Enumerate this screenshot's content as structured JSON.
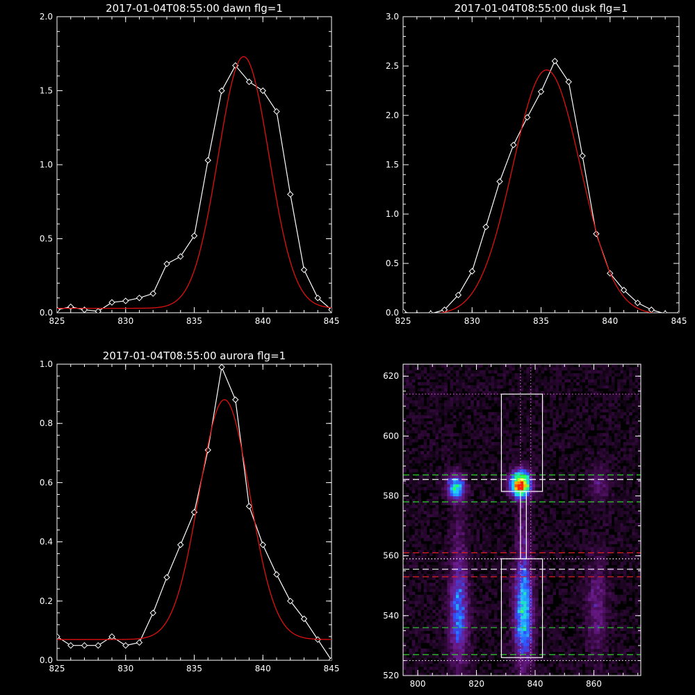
{
  "chart_data": [
    {
      "type": "line",
      "title": "2017-01-04T08:55:00 dawn flg=1",
      "xlim": [
        825,
        845
      ],
      "ylim": [
        0.0,
        2.0
      ],
      "xticks": [
        "825",
        "830",
        "835",
        "840",
        "845"
      ],
      "yticks": [
        "0.0",
        "0.5",
        "1.0",
        "1.5",
        "2.0"
      ],
      "series": [
        {
          "color": "#ffffff",
          "marker": "diamond",
          "x": [
            825,
            826,
            827,
            828,
            829,
            830,
            831,
            832,
            833,
            834,
            835,
            836,
            837,
            838,
            839,
            840,
            841,
            842,
            843,
            844,
            845
          ],
          "y": [
            0.02,
            0.04,
            0.02,
            0.01,
            0.07,
            0.08,
            0.1,
            0.13,
            0.33,
            0.38,
            0.52,
            1.03,
            1.5,
            1.67,
            1.56,
            1.5,
            1.36,
            0.8,
            0.29,
            0.1,
            0.02
          ]
        },
        {
          "color": "#e01010",
          "marker": "none",
          "fit": "gaussian",
          "params": {
            "baseline": 0.03,
            "amplitude": 1.7,
            "center": 838.6,
            "sigma": 1.85
          },
          "x": [
            825,
            845
          ]
        }
      ]
    },
    {
      "type": "line",
      "title": "2017-01-04T08:55:00 dusk flg=1",
      "xlim": [
        825,
        845
      ],
      "ylim": [
        0.0,
        3.0
      ],
      "xticks": [
        "825",
        "830",
        "835",
        "840",
        "845"
      ],
      "yticks": [
        "0.0",
        "0.5",
        "1.0",
        "1.5",
        "2.0",
        "2.5",
        "3.0"
      ],
      "series": [
        {
          "color": "#ffffff",
          "marker": "diamond",
          "x": [
            825,
            826,
            827,
            828,
            829,
            830,
            831,
            832,
            833,
            834,
            835,
            836,
            837,
            838,
            839,
            840,
            841,
            842,
            843,
            844,
            845
          ],
          "y": [
            0.01,
            -0.02,
            -0.01,
            0.03,
            0.18,
            0.42,
            0.87,
            1.33,
            1.7,
            1.98,
            2.24,
            2.55,
            2.34,
            1.59,
            0.8,
            0.4,
            0.23,
            0.1,
            0.03,
            -0.01,
            -0.01
          ]
        },
        {
          "color": "#e01010",
          "marker": "none",
          "fit": "gaussian",
          "params": {
            "baseline": -0.02,
            "amplitude": 2.48,
            "center": 835.4,
            "sigma": 2.45
          },
          "x": [
            825,
            845
          ]
        }
      ]
    },
    {
      "type": "line",
      "title": "2017-01-04T08:55:00 aurora flg=1",
      "xlim": [
        825,
        845
      ],
      "ylim": [
        0.0,
        1.0
      ],
      "xticks": [
        "825",
        "830",
        "835",
        "840",
        "845"
      ],
      "yticks": [
        "0.0",
        "0.2",
        "0.4",
        "0.6",
        "0.8",
        "1.0"
      ],
      "series": [
        {
          "color": "#ffffff",
          "marker": "diamond",
          "x": [
            825,
            826,
            827,
            828,
            829,
            830,
            831,
            832,
            833,
            834,
            835,
            836,
            837,
            838,
            839,
            840,
            841,
            842,
            843,
            844,
            845
          ],
          "y": [
            0.08,
            0.05,
            0.05,
            0.05,
            0.08,
            0.05,
            0.06,
            0.16,
            0.28,
            0.39,
            0.5,
            0.71,
            0.99,
            0.88,
            0.52,
            0.39,
            0.29,
            0.2,
            0.14,
            0.07,
            0.0
          ]
        },
        {
          "color": "#e01010",
          "marker": "none",
          "fit": "gaussian",
          "params": {
            "baseline": 0.07,
            "amplitude": 0.81,
            "center": 837.2,
            "sigma": 1.85
          },
          "x": [
            825,
            845
          ]
        }
      ]
    },
    {
      "type": "heatmap",
      "title": "",
      "xlim": [
        795,
        876
      ],
      "ylim": [
        520,
        624
      ],
      "xticks": [
        "800",
        "820",
        "840",
        "860"
      ],
      "yticks": [
        "520",
        "540",
        "560",
        "580",
        "600",
        "620"
      ],
      "colormap": [
        "#000000",
        "#3a0a45",
        "#6a1a8a",
        "#3050ff",
        "#20d0ff",
        "#20ff60",
        "#ffff00",
        "#ff2000"
      ],
      "blobs": [
        {
          "x": 813,
          "y": 583,
          "sx": 2.2,
          "sy": 3.0,
          "peak": 0.55
        },
        {
          "x": 835,
          "y": 584,
          "sx": 2.4,
          "sy": 3.0,
          "peak": 1.0
        },
        {
          "x": 862,
          "y": 584,
          "sx": 2.5,
          "sy": 4,
          "peak": 0.18
        },
        {
          "x": 836,
          "y": 541,
          "sx": 2.2,
          "sy": 12,
          "peak": 0.55
        },
        {
          "x": 814,
          "y": 541,
          "sx": 2.3,
          "sy": 12,
          "peak": 0.4
        },
        {
          "x": 861,
          "y": 543,
          "sx": 2.6,
          "sy": 11,
          "peak": 0.2
        },
        {
          "x": 836,
          "y": 567,
          "sx": 1.6,
          "sy": 10,
          "peak": 0.14
        },
        {
          "x": 814,
          "y": 568,
          "sx": 1.8,
          "sy": 10,
          "peak": 0.1
        }
      ],
      "boxes": [
        {
          "x0": 828.5,
          "x1": 842.5,
          "y0": 581.5,
          "y1": 614
        },
        {
          "x0": 828.5,
          "x1": 842.5,
          "y0": 526,
          "y1": 559
        },
        {
          "x0": 835,
          "x1": 837,
          "y0": 559,
          "y1": 581.5
        }
      ],
      "hlines": [
        {
          "y": 614,
          "color": "#d060d0",
          "style": "dotted"
        },
        {
          "y": 587,
          "color": "#30d030",
          "style": "dashed"
        },
        {
          "y": 585.5,
          "color": "#ffffff",
          "style": "dashed"
        },
        {
          "y": 578,
          "color": "#30d030",
          "style": "dashed"
        },
        {
          "y": 561,
          "color": "#e02020",
          "style": "dashed"
        },
        {
          "y": 559,
          "color": "#ffffff",
          "style": "dotted"
        },
        {
          "y": 555.5,
          "color": "#ffffff",
          "style": "dashed"
        },
        {
          "y": 553,
          "color": "#e02020",
          "style": "dashed"
        },
        {
          "y": 536,
          "color": "#30d030",
          "style": "dashed"
        },
        {
          "y": 527,
          "color": "#30d030",
          "style": "dashed"
        },
        {
          "y": 525,
          "color": "#ffffff",
          "style": "dotted"
        }
      ],
      "vlines": [
        {
          "x": 835,
          "color": "#d060d0",
          "style": "dotted"
        },
        {
          "x": 838.5,
          "color": "#d060d0",
          "style": "dotted"
        }
      ]
    }
  ]
}
